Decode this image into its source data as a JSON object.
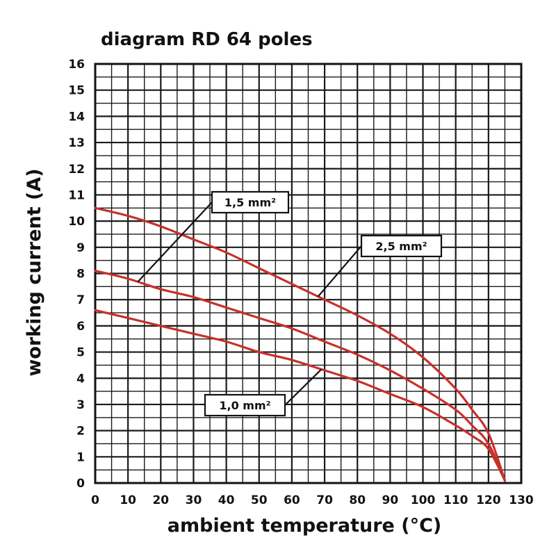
{
  "chart_data": {
    "type": "line",
    "title": "diagram RD 64 poles",
    "xlabel": "ambient temperature (°C)",
    "ylabel": "working current (A)",
    "xlim": [
      0,
      130
    ],
    "ylim": [
      0,
      16
    ],
    "xticks": [
      "0",
      "10",
      "20",
      "30",
      "40",
      "50",
      "60",
      "70",
      "80",
      "90",
      "100",
      "110",
      "120",
      "130"
    ],
    "yticks": [
      "0",
      "1",
      "2",
      "3",
      "4",
      "5",
      "6",
      "7",
      "8",
      "9",
      "10",
      "11",
      "12",
      "13",
      "14",
      "15",
      "16"
    ],
    "grid": true,
    "line_color": "#c8302a",
    "series": [
      {
        "name": "2,5 mm²",
        "x": [
          0,
          10,
          20,
          30,
          40,
          50,
          60,
          70,
          80,
          90,
          100,
          110,
          115,
          120,
          125
        ],
        "y": [
          10.5,
          10.2,
          9.8,
          9.3,
          8.8,
          8.2,
          7.6,
          7.0,
          6.4,
          5.7,
          4.8,
          3.6,
          2.8,
          1.9,
          0.1
        ]
      },
      {
        "name": "1,5 mm²",
        "x": [
          0,
          10,
          20,
          30,
          40,
          50,
          60,
          70,
          80,
          90,
          100,
          110,
          115,
          120,
          125
        ],
        "y": [
          8.1,
          7.8,
          7.4,
          7.1,
          6.7,
          6.3,
          5.9,
          5.4,
          4.9,
          4.3,
          3.6,
          2.8,
          2.2,
          1.5,
          0.1
        ]
      },
      {
        "name": "1,0 mm²",
        "x": [
          0,
          10,
          20,
          30,
          40,
          50,
          60,
          70,
          80,
          90,
          100,
          110,
          115,
          120,
          125
        ],
        "y": [
          6.6,
          6.3,
          6.0,
          5.7,
          5.4,
          5.0,
          4.7,
          4.3,
          3.9,
          3.4,
          2.9,
          2.2,
          1.8,
          1.3,
          0.1
        ]
      }
    ],
    "callouts": [
      {
        "label": "1,5 mm²",
        "series": "1,5 mm²",
        "at_x": 13
      },
      {
        "label": "2,5 mm²",
        "series": "2,5 mm²",
        "at_x": 68
      },
      {
        "label": "1,0 mm²",
        "series": "1,0 mm²",
        "at_x": 69
      }
    ]
  }
}
